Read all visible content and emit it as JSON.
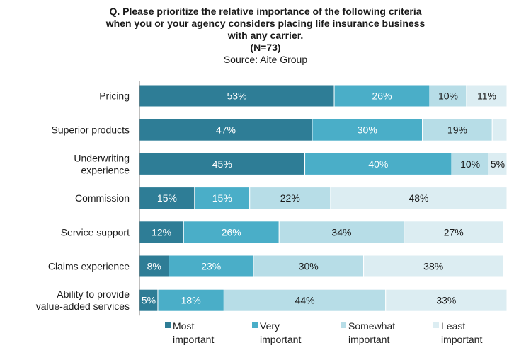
{
  "chart_data": {
    "type": "bar",
    "orientation": "horizontal",
    "stacked": true,
    "title_lines": [
      "Q. Please prioritize the relative importance of the following criteria",
      "when you or your agency considers placing life insurance business",
      "with any carrier."
    ],
    "sample_size": "(N=73)",
    "source": "Source: Aite Group",
    "categories": [
      [
        "Pricing"
      ],
      [
        "Superior products"
      ],
      [
        "Underwriting",
        "experience"
      ],
      [
        "Commission"
      ],
      [
        "Service support"
      ],
      [
        "Claims experience"
      ],
      [
        "Ability to provide",
        "value-added services"
      ]
    ],
    "series": [
      {
        "name_lines": [
          "Most",
          "important"
        ],
        "color": "#2e7d96",
        "label_color": "#ffffff",
        "values": [
          53,
          47,
          45,
          15,
          12,
          8,
          5
        ]
      },
      {
        "name_lines": [
          "Very",
          "important"
        ],
        "color": "#4aaec8",
        "label_color": "#ffffff",
        "values": [
          26,
          30,
          40,
          15,
          26,
          23,
          18
        ]
      },
      {
        "name_lines": [
          "Somewhat",
          "important"
        ],
        "color": "#b7dde7",
        "label_color": "#1a1a1a",
        "values": [
          10,
          19,
          10,
          22,
          34,
          30,
          44
        ]
      },
      {
        "name_lines": [
          "Least",
          "important"
        ],
        "color": "#dcedf2",
        "label_color": "#1a1a1a",
        "values": [
          11,
          4,
          5,
          48,
          27,
          38,
          33
        ]
      }
    ],
    "hidden_labels": [
      [
        1,
        3
      ]
    ],
    "label_suffix": "%",
    "xlim": [
      0,
      100
    ],
    "legend_position": "bottom",
    "grid": false
  }
}
